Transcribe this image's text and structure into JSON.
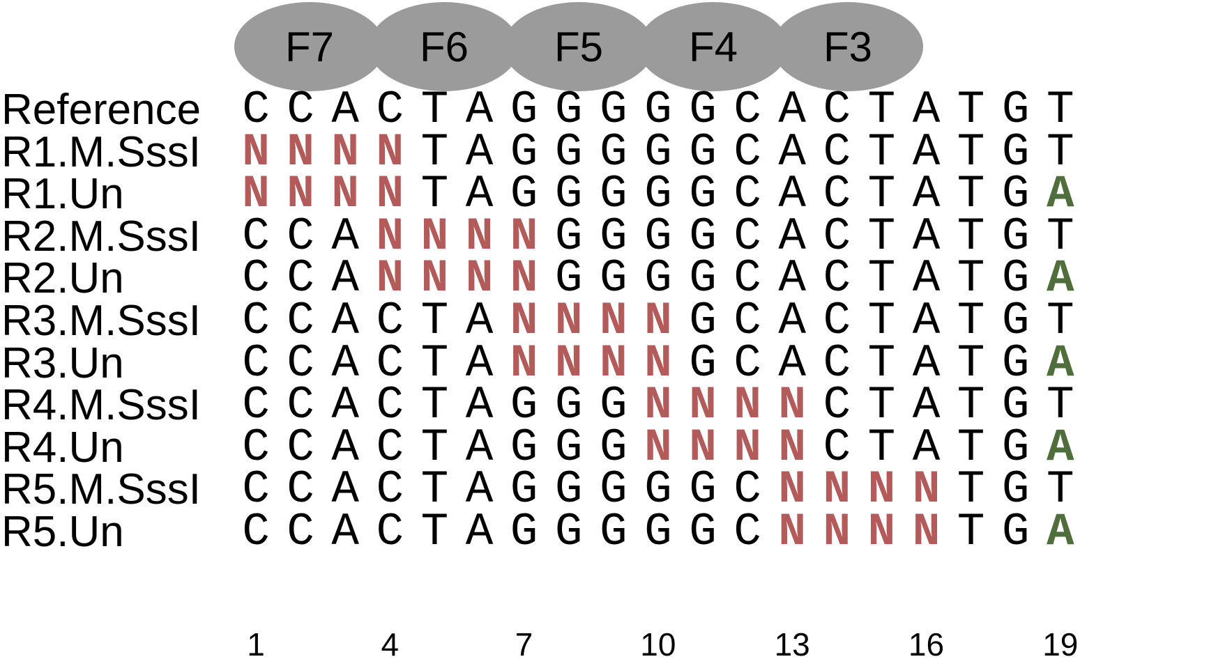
{
  "zinc_fingers": [
    "F7",
    "F6",
    "F5",
    "F4",
    "F3"
  ],
  "rows": [
    {
      "label": "Reference",
      "sequence": [
        "C",
        "C",
        "A",
        "C",
        "T",
        "A",
        "G",
        "G",
        "G",
        "G",
        "G",
        "C",
        "A",
        "C",
        "T",
        "A",
        "T",
        "G",
        "T"
      ]
    },
    {
      "label": "R1.M.SssI",
      "sequence": [
        "N",
        "N",
        "N",
        "N",
        "T",
        "A",
        "G",
        "G",
        "G",
        "G",
        "G",
        "C",
        "A",
        "C",
        "T",
        "A",
        "T",
        "G",
        "T"
      ]
    },
    {
      "label": "R1.Un",
      "sequence": [
        "N",
        "N",
        "N",
        "N",
        "T",
        "A",
        "G",
        "G",
        "G",
        "G",
        "G",
        "C",
        "A",
        "C",
        "T",
        "A",
        "T",
        "G",
        "A"
      ]
    },
    {
      "label": "R2.M.SssI",
      "sequence": [
        "C",
        "C",
        "A",
        "N",
        "N",
        "N",
        "N",
        "G",
        "G",
        "G",
        "G",
        "C",
        "A",
        "C",
        "T",
        "A",
        "T",
        "G",
        "T"
      ]
    },
    {
      "label": "R2.Un",
      "sequence": [
        "C",
        "C",
        "A",
        "N",
        "N",
        "N",
        "N",
        "G",
        "G",
        "G",
        "G",
        "C",
        "A",
        "C",
        "T",
        "A",
        "T",
        "G",
        "A"
      ]
    },
    {
      "label": "R3.M.SssI",
      "sequence": [
        "C",
        "C",
        "A",
        "C",
        "T",
        "A",
        "N",
        "N",
        "N",
        "N",
        "G",
        "C",
        "A",
        "C",
        "T",
        "A",
        "T",
        "G",
        "T"
      ]
    },
    {
      "label": "R3.Un",
      "sequence": [
        "C",
        "C",
        "A",
        "C",
        "T",
        "A",
        "N",
        "N",
        "N",
        "N",
        "G",
        "C",
        "A",
        "C",
        "T",
        "A",
        "T",
        "G",
        "A"
      ]
    },
    {
      "label": "R4.M.SssI",
      "sequence": [
        "C",
        "C",
        "A",
        "C",
        "T",
        "A",
        "G",
        "G",
        "G",
        "N",
        "N",
        "N",
        "N",
        "C",
        "T",
        "A",
        "T",
        "G",
        "T"
      ]
    },
    {
      "label": "R4.Un",
      "sequence": [
        "C",
        "C",
        "A",
        "C",
        "T",
        "A",
        "G",
        "G",
        "G",
        "N",
        "N",
        "N",
        "N",
        "C",
        "T",
        "A",
        "T",
        "G",
        "A"
      ]
    },
    {
      "label": "R5.M.SssI",
      "sequence": [
        "C",
        "C",
        "A",
        "C",
        "T",
        "A",
        "G",
        "G",
        "G",
        "G",
        "G",
        "C",
        "N",
        "N",
        "N",
        "N",
        "T",
        "G",
        "T"
      ]
    },
    {
      "label": "R5.Un",
      "sequence": [
        "C",
        "C",
        "A",
        "C",
        "T",
        "A",
        "G",
        "G",
        "G",
        "G",
        "G",
        "C",
        "N",
        "N",
        "N",
        "N",
        "T",
        "G",
        "A"
      ]
    }
  ],
  "position_ticks": [
    {
      "position": 1,
      "label": "1"
    },
    {
      "position": 4,
      "label": "4"
    },
    {
      "position": 7,
      "label": "7"
    },
    {
      "position": 10,
      "label": "10"
    },
    {
      "position": 13,
      "label": "13"
    },
    {
      "position": 16,
      "label": "16"
    },
    {
      "position": 19,
      "label": "19"
    }
  ],
  "colors": {
    "masked_base": "#b35b5b",
    "variant_base": "#4f6e3c",
    "finger_fill": "#9b9b9b"
  }
}
